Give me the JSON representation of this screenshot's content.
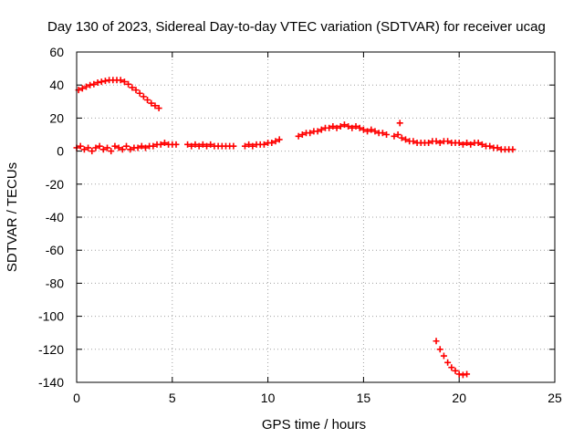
{
  "chart_data": {
    "type": "scatter",
    "title": "Day 130 of 2023, Sidereal Day-to-day VTEC variation (SDTVAR) for receiver ucag",
    "xlabel": "GPS time / hours",
    "ylabel": "SDTVAR / TECUs",
    "xlim": [
      0,
      25
    ],
    "ylim": [
      -140,
      60
    ],
    "xticks": [
      "0",
      "5",
      "10",
      "15",
      "20",
      "25"
    ],
    "yticks": [
      "60",
      "40",
      "20",
      "0",
      "-20",
      "-40",
      "-60",
      "-80",
      "-100",
      "-120",
      "-140"
    ],
    "grid": true,
    "marker": "+",
    "color": "#ff0000",
    "segments": [
      {
        "name": "arc-high",
        "x": [
          0.1,
          0.3,
          0.5,
          0.7,
          0.9,
          1.1,
          1.3,
          1.5,
          1.7,
          1.9,
          2.1,
          2.3,
          2.5,
          2.7,
          2.9,
          3.1,
          3.3,
          3.5,
          3.7,
          3.9,
          4.1,
          4.3
        ],
        "y": [
          37,
          38,
          39,
          40,
          40.5,
          41.5,
          42,
          42.5,
          43,
          43,
          43,
          43,
          42,
          40.5,
          38.5,
          37,
          35,
          33,
          31,
          29,
          27.5,
          26
        ]
      },
      {
        "name": "band-a",
        "x": [
          0.0,
          0.2,
          0.4,
          0.6,
          0.8,
          1.0,
          1.2,
          1.4,
          1.6,
          1.8,
          2.0,
          2.2,
          2.4,
          2.6,
          2.8,
          3.0,
          3.2,
          3.4,
          3.6,
          3.8,
          4.0,
          4.2,
          4.4,
          4.6,
          4.8,
          5.0,
          5.2
        ],
        "y": [
          2,
          3,
          1,
          2,
          0,
          2,
          3,
          1,
          2,
          0,
          3,
          2,
          1,
          3,
          1,
          2,
          2,
          3,
          2,
          3,
          3,
          4,
          4,
          5,
          4,
          4,
          4
        ]
      },
      {
        "name": "band-b",
        "x": [
          5.8,
          6.0,
          6.2,
          6.4,
          6.6,
          6.8,
          7.0,
          7.2,
          7.4,
          7.6,
          7.8,
          8.0,
          8.2
        ],
        "y": [
          4,
          3,
          4,
          3,
          4,
          3,
          4,
          3,
          3,
          3,
          3,
          3,
          3
        ]
      },
      {
        "name": "band-c",
        "x": [
          8.8,
          9.0,
          9.2,
          9.4,
          9.6,
          9.8,
          10.0,
          10.2,
          10.4,
          10.6
        ],
        "y": [
          3,
          4,
          3,
          4,
          4,
          4,
          5,
          5,
          6,
          7
        ]
      },
      {
        "name": "hump",
        "x": [
          11.6,
          11.8,
          12.0,
          12.2,
          12.4,
          12.6,
          12.8,
          13.0,
          13.2,
          13.4,
          13.6,
          13.8,
          14.0,
          14.2,
          14.4,
          14.6,
          14.8,
          15.0,
          15.2,
          15.4,
          15.6,
          15.8,
          16.0,
          16.2
        ],
        "y": [
          9,
          10,
          11,
          11,
          12,
          12,
          13,
          14,
          14,
          15,
          14,
          15,
          16,
          15,
          14,
          15,
          14,
          13,
          12,
          13,
          12,
          11,
          11,
          10
        ]
      },
      {
        "name": "tail",
        "x": [
          16.6,
          16.8,
          17.0,
          17.2,
          17.4,
          17.6,
          17.8,
          18.0,
          18.2,
          18.4,
          18.6,
          18.8,
          19.0,
          19.2,
          19.4,
          19.6,
          19.8,
          20.0,
          20.2,
          20.4,
          20.6,
          20.8,
          21.0,
          21.2,
          21.4,
          21.6,
          21.8,
          22.0,
          22.2,
          22.4,
          22.6,
          22.8
        ],
        "y": [
          9,
          10,
          8,
          7,
          6,
          6,
          5,
          5,
          5,
          5,
          6,
          6,
          5,
          6,
          6,
          5,
          5,
          5,
          4,
          5,
          4,
          5,
          5,
          4,
          3,
          3,
          2,
          2,
          1,
          1,
          1,
          1
        ]
      },
      {
        "name": "outliers",
        "x": [
          16.9
        ],
        "y": [
          17
        ]
      },
      {
        "name": "arc-low",
        "x": [
          18.8,
          19.0,
          19.2,
          19.4,
          19.6,
          19.8,
          20.0,
          20.2,
          20.4
        ],
        "y": [
          -115,
          -120,
          -124,
          -128,
          -131,
          -133,
          -135,
          -135.5,
          -135
        ]
      }
    ]
  }
}
